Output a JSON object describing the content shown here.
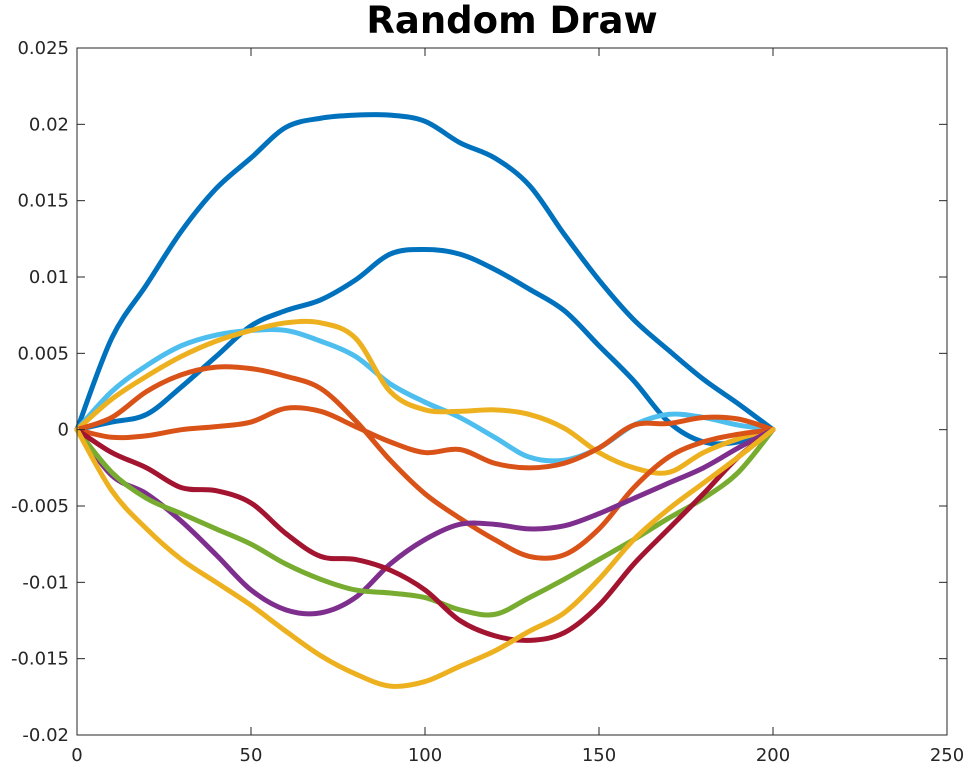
{
  "chart_data": {
    "type": "line",
    "title": "Random Draw",
    "xlabel": "",
    "ylabel": "",
    "xlim": [
      0,
      250
    ],
    "ylim": [
      -0.02,
      0.025
    ],
    "xticks": [
      0,
      50,
      100,
      150,
      200,
      250
    ],
    "xtick_labels": [
      "0",
      "50",
      "100",
      "150",
      "200",
      "250"
    ],
    "yticks": [
      -0.02,
      -0.015,
      -0.01,
      -0.005,
      0,
      0.005,
      0.01,
      0.015,
      0.02,
      0.025
    ],
    "ytick_labels": [
      "-0.02",
      "-0.015",
      "-0.01",
      "-0.005",
      "0",
      "0.005",
      "0.01",
      "0.015",
      "0.02",
      "0.025"
    ],
    "grid": false,
    "box": true,
    "series": [
      {
        "color": "#0072BD",
        "x": [
          0,
          10,
          20,
          30,
          40,
          50,
          60,
          70,
          80,
          90,
          100,
          110,
          120,
          130,
          140,
          150,
          160,
          170,
          180,
          190,
          200
        ],
        "y": [
          0,
          0.006,
          0.0095,
          0.013,
          0.0158,
          0.0178,
          0.0198,
          0.0204,
          0.0206,
          0.0206,
          0.0202,
          0.0188,
          0.0178,
          0.016,
          0.0128,
          0.0098,
          0.0072,
          0.0052,
          0.0033,
          0.0017,
          0
        ]
      },
      {
        "color": "#0072BD",
        "x": [
          0,
          10,
          20,
          30,
          40,
          50,
          60,
          70,
          80,
          90,
          100,
          110,
          120,
          130,
          140,
          150,
          160,
          170,
          180,
          190,
          200
        ],
        "y": [
          0,
          0.0005,
          0.001,
          0.0028,
          0.0048,
          0.0068,
          0.0078,
          0.0085,
          0.0098,
          0.0115,
          0.0118,
          0.0115,
          0.0105,
          0.0092,
          0.0078,
          0.0055,
          0.0032,
          0.0005,
          -0.0008,
          -0.0008,
          0
        ]
      },
      {
        "color": "#4DBEEE",
        "x": [
          0,
          10,
          20,
          30,
          40,
          50,
          60,
          70,
          80,
          90,
          100,
          110,
          120,
          130,
          140,
          150,
          160,
          170,
          180,
          190,
          200
        ],
        "y": [
          0,
          0.0025,
          0.0042,
          0.0055,
          0.0062,
          0.0065,
          0.0065,
          0.0058,
          0.0048,
          0.003,
          0.0018,
          0.0008,
          -0.0005,
          -0.0018,
          -0.002,
          -0.0012,
          0.0003,
          0.001,
          0.0008,
          0.0003,
          0
        ]
      },
      {
        "color": "#EDB120",
        "x": [
          0,
          10,
          20,
          30,
          40,
          50,
          60,
          70,
          80,
          90,
          100,
          110,
          120,
          130,
          140,
          150,
          160,
          170,
          180,
          190,
          200
        ],
        "y": [
          0,
          0.002,
          0.0035,
          0.0048,
          0.0058,
          0.0065,
          0.007,
          0.007,
          0.006,
          0.0025,
          0.0013,
          0.0012,
          0.0013,
          0.001,
          0.0001,
          -0.0015,
          -0.0025,
          -0.0028,
          -0.0015,
          -0.0006,
          0
        ]
      },
      {
        "color": "#D95319",
        "x": [
          0,
          10,
          20,
          30,
          40,
          50,
          60,
          70,
          80,
          90,
          100,
          110,
          120,
          130,
          140,
          150,
          160,
          170,
          180,
          190,
          200
        ],
        "y": [
          0,
          0.0008,
          0.0025,
          0.0036,
          0.0041,
          0.004,
          0.0035,
          0.0027,
          0.0006,
          -0.002,
          -0.0042,
          -0.0058,
          -0.0072,
          -0.0083,
          -0.0082,
          -0.0065,
          -0.0038,
          -0.0018,
          -0.0008,
          -0.0003,
          0
        ]
      },
      {
        "color": "#D95319",
        "x": [
          0,
          10,
          20,
          30,
          40,
          50,
          60,
          70,
          80,
          90,
          100,
          110,
          120,
          130,
          140,
          150,
          160,
          170,
          180,
          190,
          200
        ],
        "y": [
          0,
          -0.0005,
          -0.0004,
          0,
          0.0002,
          0.0005,
          0.0014,
          0.0012,
          0.0002,
          -0.0008,
          -0.0015,
          -0.0013,
          -0.0022,
          -0.0025,
          -0.0022,
          -0.0012,
          0.0003,
          0.0004,
          0.0008,
          0.0007,
          0
        ]
      },
      {
        "color": "#7E2F8E",
        "x": [
          0,
          10,
          20,
          30,
          40,
          50,
          60,
          70,
          80,
          90,
          100,
          110,
          120,
          130,
          140,
          150,
          160,
          170,
          180,
          190,
          200
        ],
        "y": [
          0,
          -0.003,
          -0.0042,
          -0.006,
          -0.0082,
          -0.0105,
          -0.0118,
          -0.012,
          -0.011,
          -0.0088,
          -0.0072,
          -0.0062,
          -0.0062,
          -0.0065,
          -0.0063,
          -0.0055,
          -0.0045,
          -0.0035,
          -0.0025,
          -0.0012,
          0
        ]
      },
      {
        "color": "#77AC30",
        "x": [
          0,
          10,
          20,
          30,
          40,
          50,
          60,
          70,
          80,
          90,
          100,
          110,
          120,
          130,
          140,
          150,
          160,
          170,
          180,
          190,
          200
        ],
        "y": [
          0,
          -0.0028,
          -0.0045,
          -0.0055,
          -0.0065,
          -0.0075,
          -0.0088,
          -0.0098,
          -0.0105,
          -0.0107,
          -0.011,
          -0.0118,
          -0.0121,
          -0.011,
          -0.0098,
          -0.0085,
          -0.0072,
          -0.0058,
          -0.0045,
          -0.0028,
          0
        ]
      },
      {
        "color": "#A2142F",
        "x": [
          0,
          10,
          20,
          30,
          40,
          50,
          60,
          70,
          80,
          90,
          100,
          110,
          120,
          130,
          140,
          150,
          160,
          170,
          180,
          190,
          200
        ],
        "y": [
          0,
          -0.0015,
          -0.0025,
          -0.0038,
          -0.004,
          -0.0048,
          -0.0068,
          -0.0083,
          -0.0085,
          -0.0092,
          -0.0105,
          -0.0125,
          -0.0135,
          -0.0138,
          -0.0133,
          -0.0115,
          -0.0088,
          -0.0065,
          -0.0042,
          -0.0018,
          0
        ]
      },
      {
        "color": "#EDB120",
        "x": [
          0,
          10,
          20,
          30,
          40,
          50,
          60,
          70,
          80,
          90,
          100,
          110,
          120,
          130,
          140,
          150,
          160,
          170,
          180,
          190,
          200
        ],
        "y": [
          0,
          -0.004,
          -0.0065,
          -0.0085,
          -0.01,
          -0.0115,
          -0.0132,
          -0.0148,
          -0.016,
          -0.0168,
          -0.0165,
          -0.0155,
          -0.0145,
          -0.0132,
          -0.012,
          -0.0098,
          -0.0072,
          -0.0052,
          -0.0035,
          -0.0018,
          0
        ]
      }
    ]
  }
}
